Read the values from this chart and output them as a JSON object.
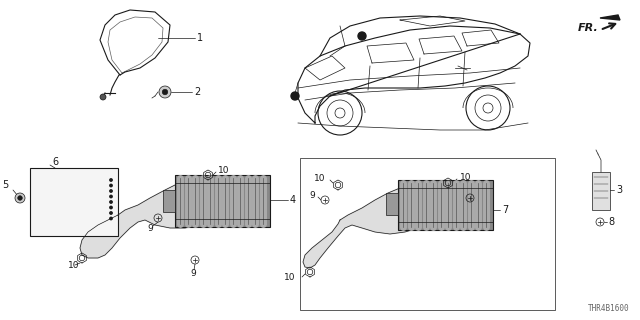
{
  "background_color": "#ffffff",
  "line_color": "#1a1a1a",
  "text_color": "#1a1a1a",
  "fig_width": 6.4,
  "fig_height": 3.2,
  "dpi": 100,
  "watermark": "THR4B1600",
  "fr_label": "FR."
}
